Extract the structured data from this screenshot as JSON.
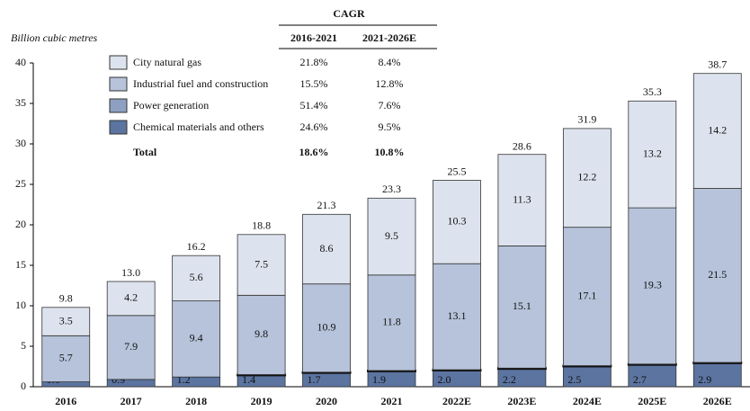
{
  "chart_data": {
    "type": "stacked_bar",
    "y_axis_label": "Billion cubic metres",
    "categories": [
      "2016",
      "2017",
      "2018",
      "2019",
      "2020",
      "2021",
      "2022E",
      "2023E",
      "2024E",
      "2025E",
      "2026E"
    ],
    "ylim": [
      0,
      40
    ],
    "yticks": [
      0,
      5,
      10,
      15,
      20,
      25,
      30,
      35,
      40
    ],
    "cagr_title": "CAGR",
    "cagr_columns": [
      "2016-2021",
      "2021-2026E"
    ],
    "series": [
      {
        "name": "Chemical materials and others",
        "color": "#5b74a0",
        "cagr": [
          "24.6%",
          "9.5%"
        ],
        "values": [
          0.6,
          0.9,
          1.2,
          1.4,
          1.7,
          1.9,
          2.0,
          2.2,
          2.5,
          2.7,
          2.9
        ],
        "value_labels": [
          "0.6",
          "0.9",
          "1.2",
          "1.4",
          "1.7",
          "1.9",
          "2.0",
          "2.2",
          "2.5",
          "2.7",
          "2.9"
        ]
      },
      {
        "name": "Power generation",
        "color": "#8ea0c2",
        "cagr": [
          "51.4%",
          "7.6%"
        ],
        "values": [
          0,
          0,
          0,
          0.1,
          0.1,
          0.1,
          0.1,
          0.1,
          0.1,
          0.1,
          0.1
        ],
        "value_labels": [
          "0.0",
          "0.0",
          "0.0",
          "0.1",
          "0.1",
          "0.1",
          "0.1",
          "0.1",
          "0.1",
          "0.1",
          "0.1"
        ]
      },
      {
        "name": "Industrial fuel and construction",
        "color": "#b6c3da",
        "cagr": [
          "15.5%",
          "12.8%"
        ],
        "values": [
          5.7,
          7.9,
          9.4,
          9.8,
          10.9,
          11.8,
          13.1,
          15.1,
          17.1,
          19.3,
          21.5
        ]
      },
      {
        "name": "City natural gas",
        "color": "#dde3ee",
        "cagr": [
          "21.8%",
          "8.4%"
        ],
        "values": [
          3.5,
          4.2,
          5.6,
          7.5,
          8.6,
          9.5,
          10.3,
          11.3,
          12.2,
          13.2,
          14.2
        ]
      }
    ],
    "totals": {
      "values": [
        9.8,
        13.0,
        16.2,
        18.8,
        21.3,
        23.3,
        25.5,
        28.6,
        31.9,
        35.3,
        38.7
      ],
      "value_labels": [
        "9.8",
        "13.0",
        "16.2",
        "18.8",
        "21.3",
        "23.3",
        "25.5",
        "28.6",
        "31.9",
        "35.3",
        "38.7"
      ]
    },
    "total_label": "Total",
    "total_cagr": [
      "18.6%",
      "10.8%"
    ]
  }
}
